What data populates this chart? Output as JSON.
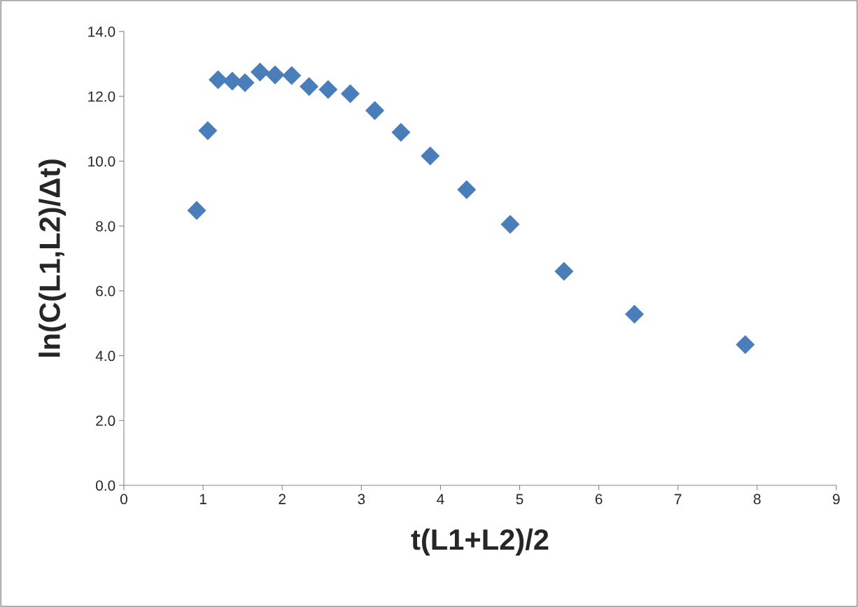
{
  "chart_data": {
    "type": "scatter",
    "xlabel": "t(L1+L2)/2",
    "ylabel": "ln(C(L1,L2)/Δt)",
    "marker": "diamond",
    "grid": false,
    "xlim": [
      0,
      9
    ],
    "xticks": [
      0,
      1,
      2,
      3,
      4,
      5,
      6,
      7,
      8,
      9
    ],
    "ylim": [
      0,
      14
    ],
    "yticks": [
      {
        "value": 0,
        "label": "0.0"
      },
      {
        "value": 2,
        "label": "2.0"
      },
      {
        "value": 4,
        "label": "4.0"
      },
      {
        "value": 6,
        "label": "6.0"
      },
      {
        "value": 8,
        "label": "8.0"
      },
      {
        "value": 10,
        "label": "10.0"
      },
      {
        "value": 12,
        "label": "12.0"
      },
      {
        "value": 14,
        "label": "14.0"
      }
    ],
    "series": [
      {
        "color": "#4a7ebb",
        "x": [
          0.92,
          1.06,
          1.19,
          1.37,
          1.53,
          1.72,
          1.91,
          2.12,
          2.34,
          2.58,
          2.86,
          3.17,
          3.5,
          3.87,
          4.33,
          4.88,
          5.56,
          6.45,
          7.85
        ],
        "values": [
          8.48,
          10.94,
          12.51,
          12.47,
          12.42,
          12.75,
          12.66,
          12.64,
          12.3,
          12.21,
          12.08,
          11.56,
          10.89,
          10.16,
          9.12,
          8.05,
          6.6,
          5.28,
          4.34
        ]
      }
    ]
  }
}
